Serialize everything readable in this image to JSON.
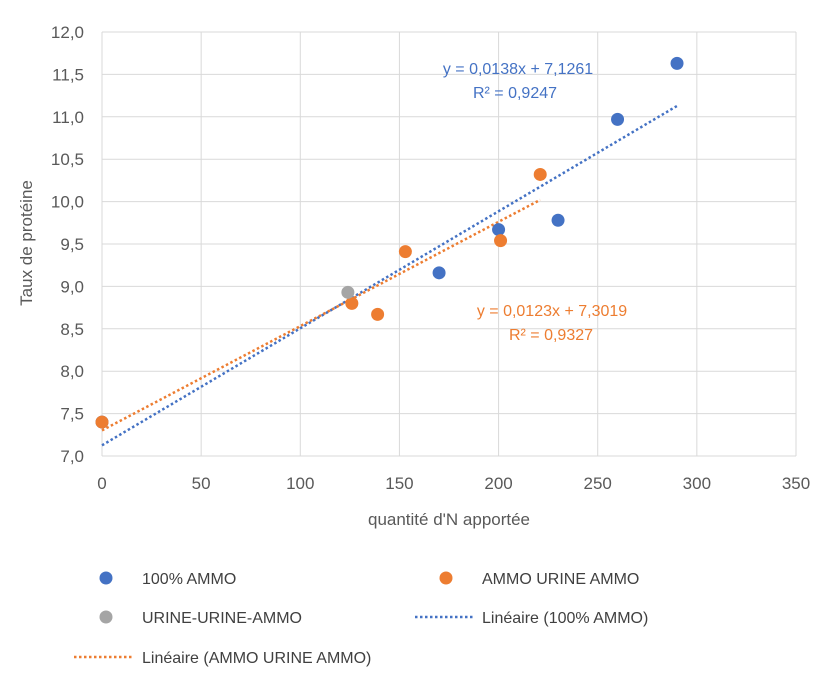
{
  "chart_data": {
    "type": "scatter",
    "xlabel": "quantité d'N apportée",
    "ylabel": "Taux de protéine",
    "xlim": [
      0,
      350
    ],
    "ylim": [
      7.0,
      12.0
    ],
    "x_ticks": [
      0,
      50,
      100,
      150,
      200,
      250,
      300,
      350
    ],
    "y_ticks": [
      7.0,
      7.5,
      8.0,
      8.5,
      9.0,
      9.5,
      10.0,
      10.5,
      11.0,
      11.5,
      12.0
    ],
    "x_tick_labels": [
      "0",
      "50",
      "100",
      "150",
      "200",
      "250",
      "300",
      "350"
    ],
    "y_tick_labels": [
      "7,0",
      "7,5",
      "8,0",
      "8,5",
      "9,0",
      "9,5",
      "10,0",
      "10,5",
      "11,0",
      "11,5",
      "12,0"
    ],
    "grid": true,
    "legend_position": "bottom",
    "series": [
      {
        "name": "100% AMMO",
        "color": "#4472C4",
        "points": [
          {
            "x": 0,
            "y": 7.4
          },
          {
            "x": 170,
            "y": 9.16
          },
          {
            "x": 200,
            "y": 9.67
          },
          {
            "x": 230,
            "y": 9.78
          },
          {
            "x": 260,
            "y": 10.97
          },
          {
            "x": 290,
            "y": 11.63
          }
        ]
      },
      {
        "name": "AMMO URINE AMMO",
        "color": "#ED7D31",
        "points": [
          {
            "x": 0,
            "y": 7.4
          },
          {
            "x": 126,
            "y": 8.8
          },
          {
            "x": 139,
            "y": 8.67
          },
          {
            "x": 153,
            "y": 9.41
          },
          {
            "x": 201,
            "y": 9.54
          },
          {
            "x": 221,
            "y": 10.32
          }
        ]
      },
      {
        "name": "URINE-URINE-AMMO",
        "color": "#A5A5A5",
        "points": [
          {
            "x": 124,
            "y": 8.93
          }
        ]
      }
    ],
    "trendlines": [
      {
        "name": "Linéaire (100% AMMO)",
        "color": "#4472C4",
        "slope": 0.0138,
        "intercept": 7.1261,
        "x_range": [
          0,
          290
        ],
        "equation": "y = 0,0138x + 7,1261",
        "r2": "R² = 0,9247"
      },
      {
        "name": "Linéaire (AMMO URINE AMMO)",
        "color": "#ED7D31",
        "slope": 0.0123,
        "intercept": 7.3019,
        "x_range": [
          0,
          221
        ],
        "equation": "y = 0,0123x + 7,3019",
        "r2": "R² = 0,9327"
      }
    ]
  }
}
